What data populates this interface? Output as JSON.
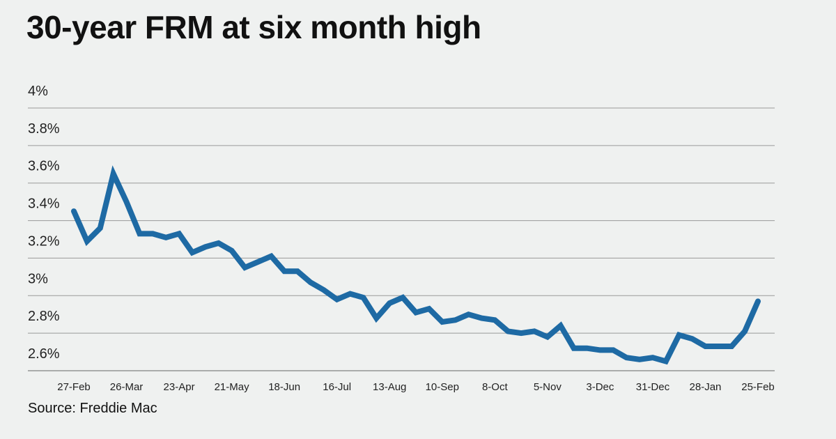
{
  "title": "30-year FRM at six month high",
  "source": "Source: Freddie Mac",
  "chart_data": {
    "type": "line",
    "title": "30-year FRM at six month high",
    "xlabel": "",
    "ylabel": "",
    "ylim": [
      2.6,
      4.0
    ],
    "yticks": [
      2.6,
      2.8,
      3.0,
      3.2,
      3.4,
      3.6,
      3.8,
      4.0
    ],
    "ytick_labels": [
      "2.6%",
      "2.8%",
      "3%",
      "3.2%",
      "3.4%",
      "3.6%",
      "3.8%",
      "4%"
    ],
    "xtick_labels": [
      "27-Feb",
      "26-Mar",
      "23-Apr",
      "21-May",
      "18-Jun",
      "16-Jul",
      "13-Aug",
      "10-Sep",
      "8-Oct",
      "5-Nov",
      "3-Dec",
      "31-Dec",
      "28-Jan",
      "25-Feb"
    ],
    "xtick_every": 4,
    "grid": true,
    "series": [
      {
        "name": "30-year FRM",
        "color": "#1e6aa4",
        "values": [
          3.45,
          3.29,
          3.36,
          3.65,
          3.5,
          3.33,
          3.33,
          3.31,
          3.33,
          3.23,
          3.26,
          3.28,
          3.24,
          3.15,
          3.18,
          3.21,
          3.13,
          3.13,
          3.07,
          3.03,
          2.98,
          3.01,
          2.99,
          2.88,
          2.96,
          2.99,
          2.91,
          2.93,
          2.86,
          2.87,
          2.9,
          2.88,
          2.87,
          2.81,
          2.8,
          2.81,
          2.78,
          2.84,
          2.72,
          2.72,
          2.71,
          2.71,
          2.67,
          2.66,
          2.67,
          2.65,
          2.79,
          2.77,
          2.73,
          2.73,
          2.73,
          2.81,
          2.97
        ]
      }
    ]
  }
}
